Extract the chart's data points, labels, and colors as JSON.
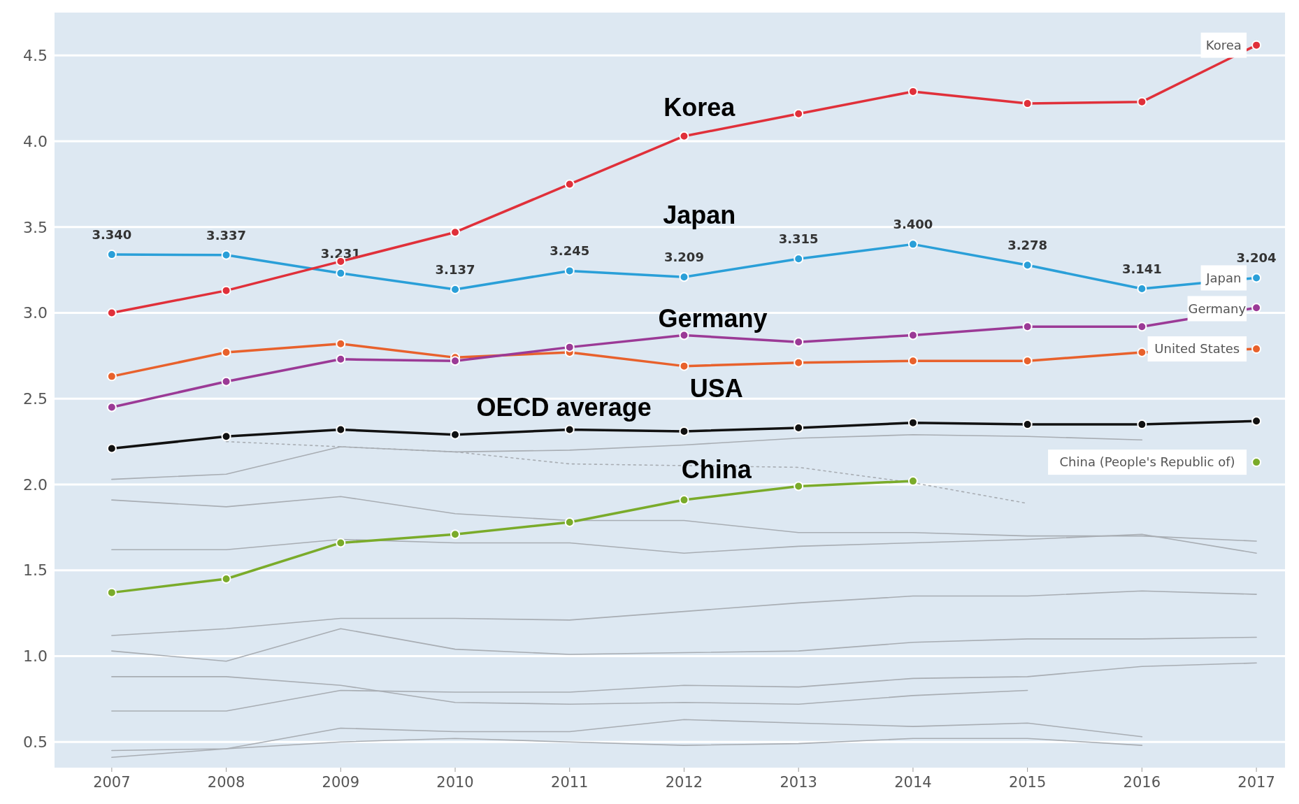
{
  "chart_data": {
    "type": "line",
    "x": [
      2007,
      2008,
      2009,
      2010,
      2011,
      2012,
      2013,
      2014,
      2015,
      2016,
      2017
    ],
    "xlim": [
      2006.5,
      2017.25
    ],
    "xticks": [
      2007,
      2008,
      2009,
      2010,
      2011,
      2012,
      2013,
      2014,
      2015,
      2016,
      2017
    ],
    "ylim": [
      0.35,
      4.75
    ],
    "yticks": [
      0.5,
      {
        "value": 1,
        "label": "1.0"
      },
      1.5,
      {
        "value": 2,
        "label": "2.0"
      },
      2.5,
      {
        "value": 3,
        "label": "3.0"
      },
      3.5,
      {
        "value": 4,
        "label": "4.0"
      },
      4.5
    ],
    "grid": "y",
    "series": [
      {
        "color": "#a8adb3",
        "marker": "none",
        "values": [
          2.03,
          2.06,
          2.22,
          2.19,
          2.2,
          2.23,
          2.27,
          2.29,
          2.28,
          2.26,
          null
        ]
      },
      {
        "color": "#a8adb3",
        "marker": "none",
        "line_style": "dotted",
        "values": [
          null,
          2.25,
          2.22,
          2.19,
          2.12,
          2.11,
          2.1,
          2.01,
          1.89,
          null,
          null
        ]
      },
      {
        "color": "#a8adb3",
        "marker": "none",
        "values": [
          1.91,
          1.87,
          1.93,
          1.83,
          1.79,
          1.79,
          1.72,
          1.72,
          1.7,
          1.7,
          1.67
        ]
      },
      {
        "color": "#a8adb3",
        "marker": "none",
        "values": [
          1.62,
          1.62,
          1.68,
          1.66,
          1.66,
          1.6,
          1.64,
          1.66,
          1.68,
          1.71,
          1.6
        ]
      },
      {
        "color": "#a8adb3",
        "marker": "none",
        "values": [
          1.12,
          1.16,
          1.22,
          1.22,
          1.21,
          1.26,
          1.31,
          1.35,
          1.35,
          1.38,
          1.36
        ]
      },
      {
        "color": "#a8adb3",
        "marker": "none",
        "values": [
          1.03,
          0.97,
          1.16,
          1.04,
          1.01,
          1.02,
          1.03,
          1.08,
          1.1,
          1.1,
          1.11
        ]
      },
      {
        "color": "#a8adb3",
        "marker": "none",
        "values": [
          0.88,
          0.88,
          0.83,
          0.73,
          0.72,
          0.73,
          0.72,
          0.77,
          0.8,
          null,
          null
        ]
      },
      {
        "color": "#a8adb3",
        "marker": "none",
        "values": [
          0.68,
          0.68,
          0.8,
          0.79,
          0.79,
          0.83,
          0.82,
          0.87,
          0.88,
          0.94,
          0.96
        ]
      },
      {
        "color": "#a8adb3",
        "marker": "none",
        "values": [
          0.45,
          0.46,
          0.58,
          0.56,
          0.56,
          0.63,
          0.61,
          0.59,
          0.61,
          0.53,
          null
        ]
      },
      {
        "color": "#a8adb3",
        "marker": "none",
        "values": [
          0.41,
          0.46,
          0.5,
          0.52,
          0.5,
          0.48,
          0.49,
          0.52,
          0.52,
          0.48,
          null
        ]
      },
      {
        "color": "#111111",
        "marker": "circle",
        "values": [
          2.21,
          2.28,
          2.32,
          2.29,
          2.32,
          2.31,
          2.33,
          2.36,
          2.35,
          2.35,
          2.37
        ]
      },
      {
        "name": "China (People's Republic of)",
        "color": "#7aab2a",
        "marker": "circle",
        "values": [
          1.37,
          1.45,
          1.66,
          1.71,
          1.78,
          1.91,
          1.99,
          2.02,
          null,
          null,
          2.13
        ]
      },
      {
        "name": "United States",
        "color": "#e8612c",
        "marker": "circle",
        "values": [
          2.63,
          2.77,
          2.82,
          2.74,
          2.77,
          2.69,
          2.71,
          2.72,
          2.72,
          2.77,
          2.79
        ]
      },
      {
        "name": "Germany",
        "color": "#9b3a96",
        "marker": "circle",
        "values": [
          2.45,
          2.6,
          2.73,
          2.72,
          2.8,
          2.87,
          2.83,
          2.87,
          2.92,
          2.92,
          3.03
        ]
      },
      {
        "name": "Japan",
        "color": "#2a9fd8",
        "marker": "circle",
        "values": [
          3.34,
          3.337,
          3.231,
          3.137,
          3.245,
          3.209,
          3.315,
          3.4,
          3.278,
          3.141,
          3.204
        ],
        "value_labels": [
          "3.340",
          "3.337",
          "3.231",
          "3.137",
          "3.245",
          "3.209",
          "3.315",
          "3.400",
          "3.278",
          "3.141",
          "3.204"
        ]
      },
      {
        "name": "Korea",
        "color": "#e0303a",
        "marker": "circle",
        "values": [
          3.0,
          3.13,
          3.3,
          3.47,
          3.75,
          4.03,
          4.16,
          4.29,
          4.22,
          4.23,
          4.56
        ]
      }
    ],
    "annotations": [
      "Korea",
      "Japan",
      "Germany",
      "USA",
      "OECD average",
      "China"
    ]
  }
}
